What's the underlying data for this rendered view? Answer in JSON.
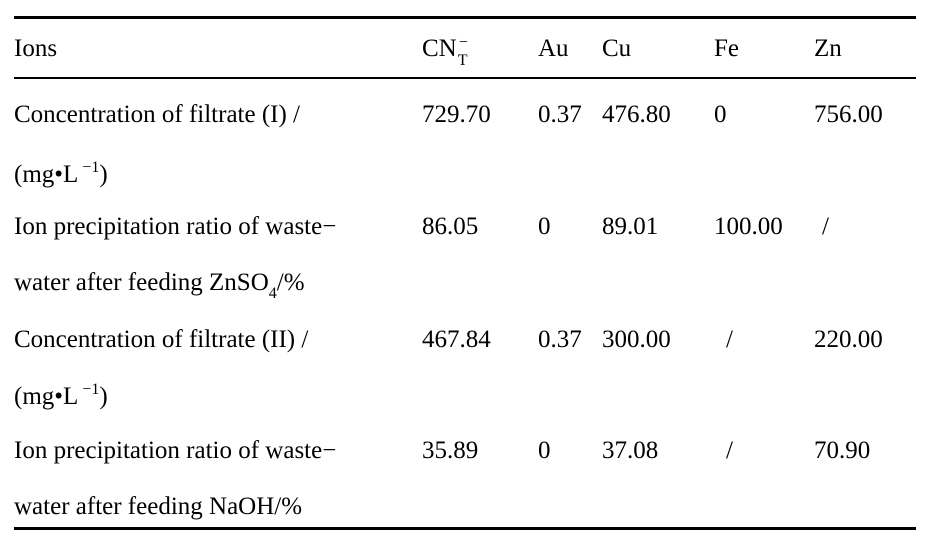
{
  "table": {
    "header": {
      "ions": "Ions",
      "cn_base": "CN",
      "cn_sub": "T",
      "cn_sup": "−",
      "au": "Au",
      "cu": "Cu",
      "fe": "Fe",
      "zn": "Zn"
    },
    "rows": [
      {
        "label_line1": "Concentration of filtrate (I) /",
        "label_line2_pre": "(mg•L",
        "label_line2_sup": "−1",
        "label_line2_post": ")",
        "cn": "729.70",
        "au": "0.37",
        "cu": "476.80",
        "fe": "0",
        "zn": "756.00"
      },
      {
        "label_line1": "Ion precipitation ratio of waste−",
        "label_line2_pre": "water after feeding ZnSO",
        "label_line2_sub": "4",
        "label_line2_post": "/%",
        "cn": "86.05",
        "au": "0",
        "cu": "89.01",
        "fe": "100.00",
        "zn": "/"
      },
      {
        "label_line1": "Concentration of filtrate (II) /",
        "label_line2_pre": "(mg•L",
        "label_line2_sup": "−1",
        "label_line2_post": ")",
        "cn": "467.84",
        "au": "0.37",
        "cu": "300.00",
        "fe": "/",
        "zn": "220.00"
      },
      {
        "label_line1": "Ion precipitation ratio of waste−",
        "label_line2_pre": "water after feeding NaOH/%",
        "cn": "35.89",
        "au": "0",
        "cu": "37.08",
        "fe": "/",
        "zn": "70.90"
      }
    ]
  }
}
